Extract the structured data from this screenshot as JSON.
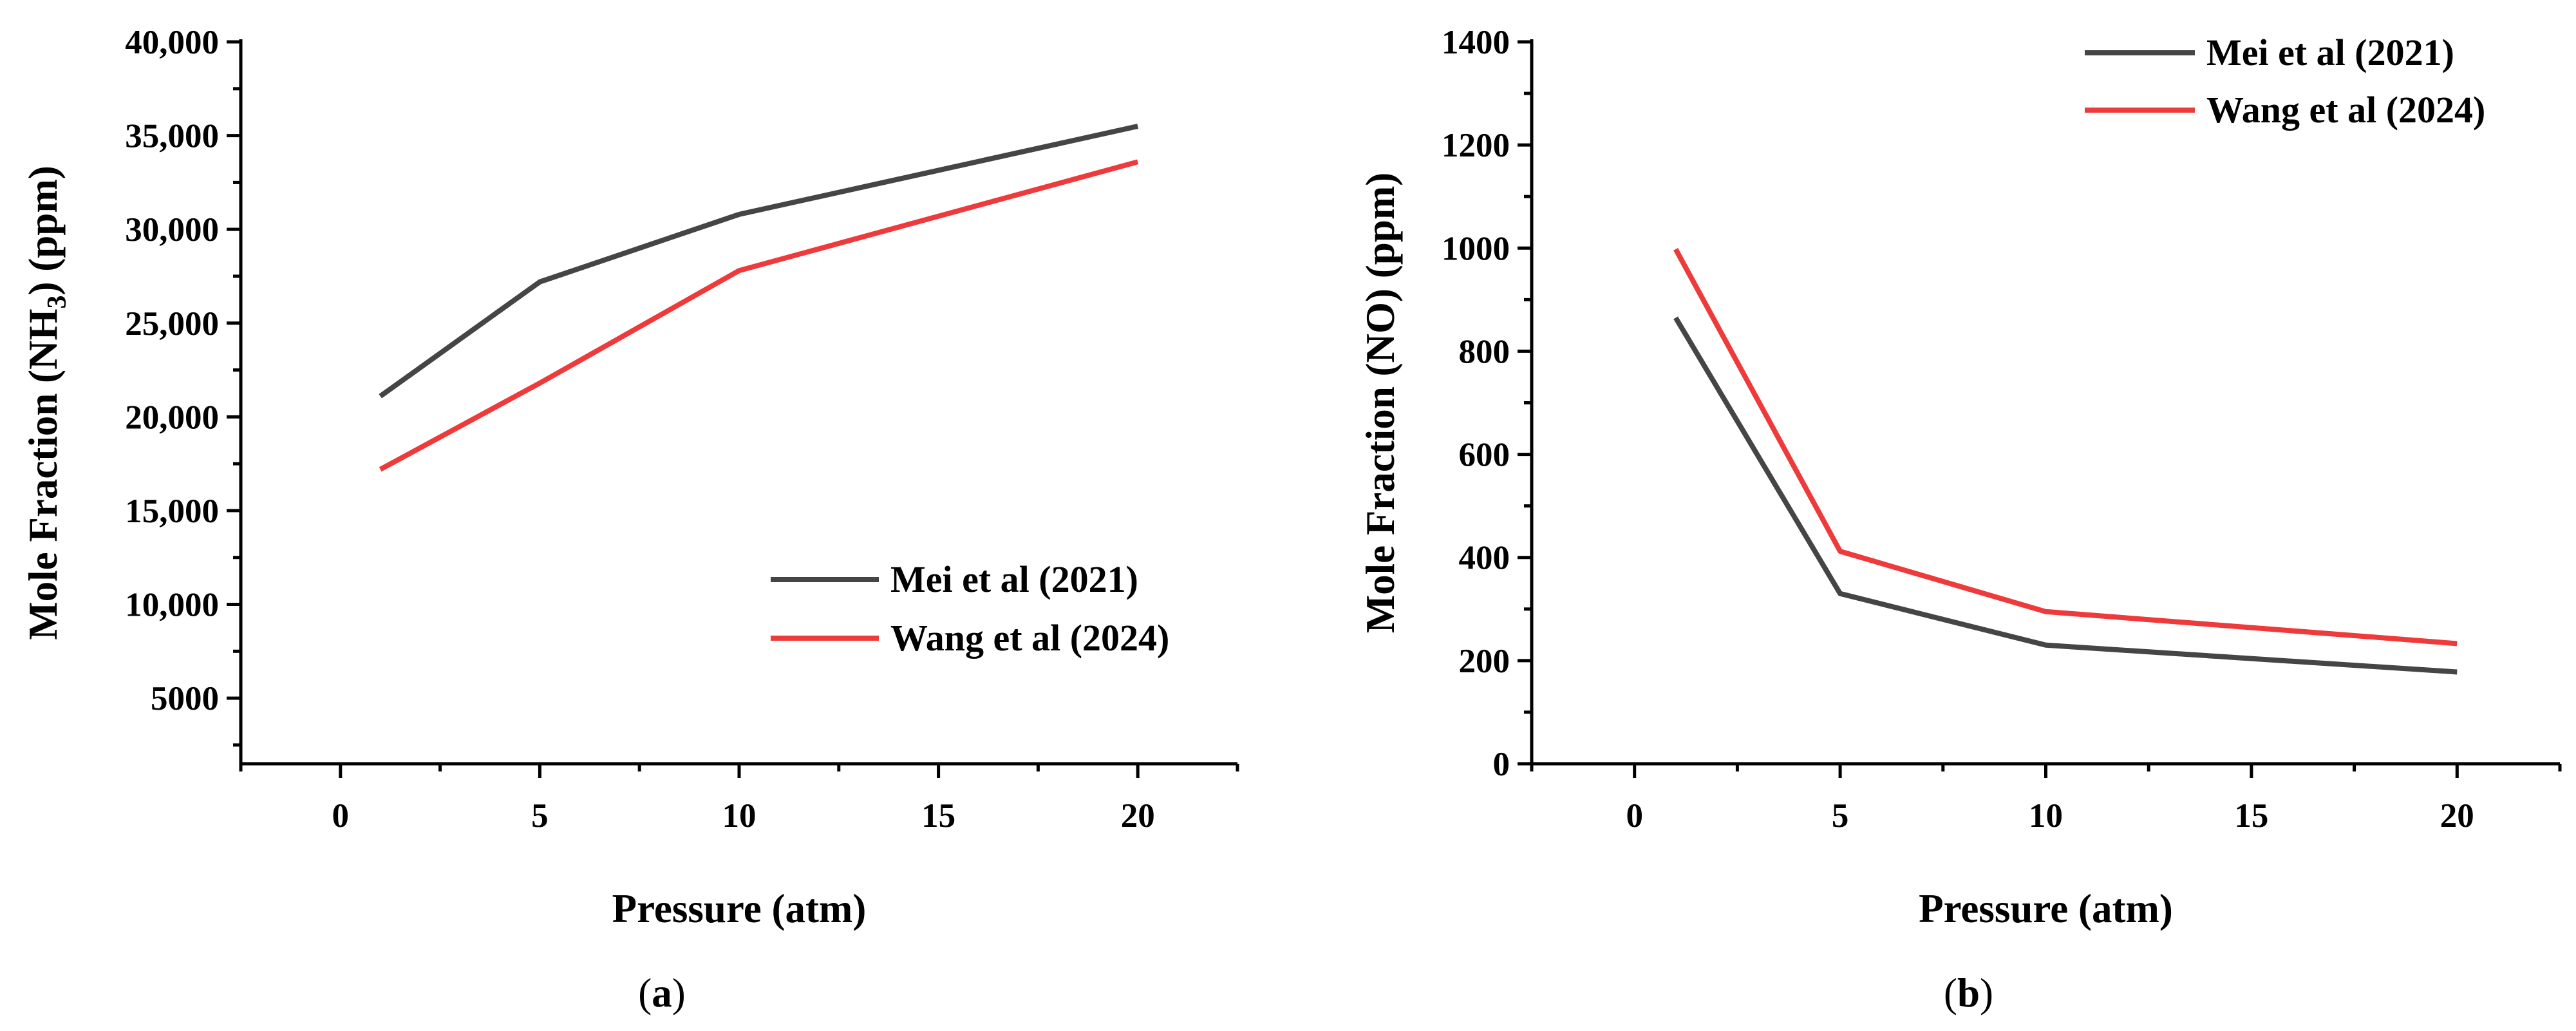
{
  "chart_data": [
    {
      "panel": "a",
      "type": "line",
      "panel_label": "(a)",
      "xlabel": "Pressure (atm)",
      "ylabel": "Mole Fraction (NH3) (ppm)",
      "ylabel_parts": {
        "pre": "Mole Fraction (NH",
        "sub": "3",
        "post": ") (ppm)"
      },
      "xlim": [
        -2.5,
        22.5
      ],
      "ylim": [
        1500,
        40000
      ],
      "xticks": [
        0,
        5,
        10,
        15,
        20
      ],
      "xtick_labels": [
        "0",
        "5",
        "10",
        "15",
        "20"
      ],
      "yticks": [
        5000,
        10000,
        15000,
        20000,
        25000,
        30000,
        35000,
        40000
      ],
      "ytick_labels": [
        "5000",
        "10,000",
        "15,000",
        "20,000",
        "25,000",
        "30,000",
        "35,000",
        "40,000"
      ],
      "legend_position": "bottom-right",
      "series": [
        {
          "name": "Mei et al (2021)",
          "color": "#454545",
          "x": [
            1,
            5,
            10,
            20
          ],
          "y": [
            21100,
            27200,
            30800,
            35500
          ]
        },
        {
          "name": "Wang et al (2024)",
          "color": "#ee3a3a",
          "x": [
            1,
            5,
            10,
            20
          ],
          "y": [
            17200,
            21800,
            27800,
            33600
          ]
        }
      ]
    },
    {
      "panel": "b",
      "type": "line",
      "panel_label": "(b)",
      "xlabel": "Pressure (atm)",
      "ylabel": "Mole Fraction (NO) (ppm)",
      "ylabel_parts": {
        "pre": "Mole Fraction (NO) (ppm)",
        "sub": "",
        "post": ""
      },
      "xlim": [
        -2.5,
        22.5
      ],
      "ylim": [
        0,
        1400
      ],
      "xticks": [
        0,
        5,
        10,
        15,
        20
      ],
      "xtick_labels": [
        "0",
        "5",
        "10",
        "15",
        "20"
      ],
      "yticks": [
        0,
        200,
        400,
        600,
        800,
        1000,
        1200,
        1400
      ],
      "ytick_labels": [
        "0",
        "200",
        "400",
        "600",
        "800",
        "1000",
        "1200",
        "1400"
      ],
      "legend_position": "top-right",
      "series": [
        {
          "name": "Mei et al (2021)",
          "color": "#454545",
          "x": [
            1,
            5,
            10,
            20
          ],
          "y": [
            865,
            330,
            230,
            178
          ]
        },
        {
          "name": "Wang et al (2024)",
          "color": "#ee3a3a",
          "x": [
            1,
            5,
            10,
            20
          ],
          "y": [
            998,
            412,
            295,
            233
          ]
        }
      ]
    }
  ]
}
